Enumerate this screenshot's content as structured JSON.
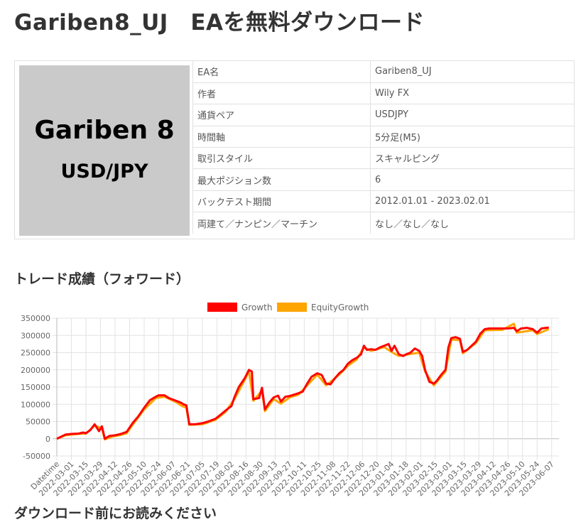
{
  "page": {
    "title": "Gariben8_UJ　EAを無料ダウンロード",
    "section_heading": "トレード成績（フォワード）",
    "next_heading": "ダウンロード前にお読みください"
  },
  "ea_image": {
    "line1": "Gariben 8",
    "line2": "USD/JPY"
  },
  "spec_rows": [
    {
      "key": "EA名",
      "value": "Gariben8_UJ"
    },
    {
      "key": "作者",
      "value": "Wily FX"
    },
    {
      "key": "通貨ペア",
      "value": "USDJPY"
    },
    {
      "key": "時間軸",
      "value": "5分足(M5)"
    },
    {
      "key": "取引スタイル",
      "value": "スキャルピング"
    },
    {
      "key": "最大ポジション数",
      "value": "6"
    },
    {
      "key": "バックテスト期間",
      "value": "2012.01.01 - 2023.02.01"
    },
    {
      "key": "両建て／ナンピン／マーチン",
      "value": "なし／なし／なし"
    }
  ],
  "chart_data": {
    "type": "line",
    "x_categories": [
      "Datetime",
      "2022-03-01",
      "2022-03-15",
      "2022-03-29",
      "2022-04-12",
      "2022-04-26",
      "2022-05-10",
      "2022-05-24",
      "2022-06-07",
      "2022-06-21",
      "2022-07-05",
      "2022-07-19",
      "2022-08-02",
      "2022-08-16",
      "2022-08-30",
      "2022-09-13",
      "2022-09-27",
      "2022-10-11",
      "2022-10-25",
      "2022-11-08",
      "2022-11-22",
      "2022-12-06",
      "2022-12-20",
      "2023-01-04",
      "2023-01-18",
      "2023-02-01",
      "2023-02-15",
      "2023-03-01",
      "2023-03-15",
      "2023-03-29",
      "2023-04-12",
      "2023-04-26",
      "2023-05-10",
      "2023-05-24",
      "2023-06-07"
    ],
    "y_ticks": [
      350000,
      300000,
      250000,
      200000,
      150000,
      100000,
      50000,
      0,
      -50000
    ],
    "ylim": [
      -50000,
      350000
    ],
    "grid": true,
    "legend_position": "top-center",
    "series": [
      {
        "name": "Growth",
        "color": "#ff0000",
        "points": [
          [
            0,
            0
          ],
          [
            0.6,
            12000
          ],
          [
            1,
            14000
          ],
          [
            1.5,
            15000
          ],
          [
            1.8,
            18000
          ],
          [
            2,
            16000
          ],
          [
            2.3,
            25000
          ],
          [
            2.6,
            42000
          ],
          [
            2.9,
            22000
          ],
          [
            3.1,
            36000
          ],
          [
            3.3,
            0
          ],
          [
            3.6,
            8000
          ],
          [
            4,
            10000
          ],
          [
            4.4,
            14000
          ],
          [
            4.8,
            20000
          ],
          [
            5.2,
            45000
          ],
          [
            5.6,
            65000
          ],
          [
            6,
            90000
          ],
          [
            6.4,
            112000
          ],
          [
            6.8,
            122000
          ],
          [
            7,
            126000
          ],
          [
            7.4,
            126000
          ],
          [
            7.7,
            118000
          ],
          [
            8.2,
            110000
          ],
          [
            8.5,
            105000
          ],
          [
            8.7,
            100000
          ],
          [
            8.9,
            97000
          ],
          [
            9.1,
            42000
          ],
          [
            9.5,
            42000
          ],
          [
            10,
            45000
          ],
          [
            10.4,
            50000
          ],
          [
            10.9,
            58000
          ],
          [
            11.2,
            68000
          ],
          [
            11.6,
            82000
          ],
          [
            12,
            95000
          ],
          [
            12.2,
            120000
          ],
          [
            12.5,
            150000
          ],
          [
            12.9,
            175000
          ],
          [
            13.2,
            200000
          ],
          [
            13.4,
            195000
          ],
          [
            13.5,
            115000
          ],
          [
            13.9,
            118000
          ],
          [
            14.1,
            148000
          ],
          [
            14.3,
            85000
          ],
          [
            14.6,
            105000
          ],
          [
            14.9,
            120000
          ],
          [
            15.2,
            125000
          ],
          [
            15.4,
            108000
          ],
          [
            15.7,
            122000
          ],
          [
            16,
            124000
          ],
          [
            16.3,
            128000
          ],
          [
            16.6,
            132000
          ],
          [
            16.9,
            137000
          ],
          [
            17.2,
            160000
          ],
          [
            17.5,
            180000
          ],
          [
            17.9,
            190000
          ],
          [
            18.2,
            185000
          ],
          [
            18.5,
            160000
          ],
          [
            18.8,
            158000
          ],
          [
            19.1,
            175000
          ],
          [
            19.4,
            190000
          ],
          [
            19.7,
            200000
          ],
          [
            20,
            218000
          ],
          [
            20.3,
            228000
          ],
          [
            20.6,
            235000
          ],
          [
            20.9,
            245000
          ],
          [
            21.1,
            270000
          ],
          [
            21.3,
            258000
          ],
          [
            21.6,
            260000
          ],
          [
            21.9,
            258000
          ],
          [
            22.2,
            265000
          ],
          [
            22.5,
            270000
          ],
          [
            22.8,
            275000
          ],
          [
            23,
            255000
          ],
          [
            23.2,
            270000
          ],
          [
            23.5,
            245000
          ],
          [
            23.8,
            240000
          ],
          [
            24,
            245000
          ],
          [
            24.3,
            250000
          ],
          [
            24.6,
            262000
          ],
          [
            24.9,
            255000
          ],
          [
            25.1,
            240000
          ],
          [
            25.3,
            200000
          ],
          [
            25.6,
            165000
          ],
          [
            25.9,
            160000
          ],
          [
            26.1,
            168000
          ],
          [
            26.4,
            185000
          ],
          [
            26.7,
            200000
          ],
          [
            26.9,
            265000
          ],
          [
            27.1,
            292000
          ],
          [
            27.4,
            295000
          ],
          [
            27.7,
            290000
          ],
          [
            27.9,
            252000
          ],
          [
            28.2,
            258000
          ],
          [
            28.5,
            270000
          ],
          [
            28.8,
            282000
          ],
          [
            29.1,
            305000
          ],
          [
            29.4,
            318000
          ],
          [
            29.7,
            320000
          ],
          [
            30.2,
            320000
          ],
          [
            30.6,
            320000
          ],
          [
            31,
            320000
          ],
          [
            31.4,
            322000
          ],
          [
            31.6,
            312000
          ],
          [
            31.9,
            320000
          ],
          [
            32.3,
            322000
          ],
          [
            32.7,
            318000
          ],
          [
            33,
            308000
          ],
          [
            33.3,
            320000
          ],
          [
            33.8,
            323000
          ]
        ]
      },
      {
        "name": "EquityGrowth",
        "color": "#ffa500",
        "points": [
          [
            0,
            0
          ],
          [
            0.6,
            10000
          ],
          [
            1,
            12000
          ],
          [
            1.5,
            14000
          ],
          [
            2,
            15000
          ],
          [
            2.6,
            38000
          ],
          [
            3.1,
            30000
          ],
          [
            3.3,
            -2000
          ],
          [
            3.8,
            6000
          ],
          [
            4.4,
            11000
          ],
          [
            4.8,
            16000
          ],
          [
            5.2,
            40000
          ],
          [
            6,
            85000
          ],
          [
            6.8,
            118000
          ],
          [
            7.4,
            122000
          ],
          [
            8.2,
            106000
          ],
          [
            8.6,
            95000
          ],
          [
            8.9,
            90000
          ],
          [
            9.1,
            40000
          ],
          [
            10,
            42000
          ],
          [
            10.9,
            55000
          ],
          [
            11.6,
            78000
          ],
          [
            12.2,
            115000
          ],
          [
            12.9,
            170000
          ],
          [
            13.2,
            196000
          ],
          [
            13.5,
            110000
          ],
          [
            14.1,
            140000
          ],
          [
            14.3,
            80000
          ],
          [
            14.9,
            115000
          ],
          [
            15.4,
            102000
          ],
          [
            16,
            120000
          ],
          [
            16.6,
            128000
          ],
          [
            17.2,
            155000
          ],
          [
            17.9,
            186000
          ],
          [
            18.5,
            155000
          ],
          [
            19.4,
            186000
          ],
          [
            20,
            212000
          ],
          [
            20.6,
            230000
          ],
          [
            21.1,
            265000
          ],
          [
            21.6,
            255000
          ],
          [
            22.5,
            266000
          ],
          [
            23,
            252000
          ],
          [
            23.5,
            240000
          ],
          [
            24.3,
            246000
          ],
          [
            24.9,
            250000
          ],
          [
            25.3,
            195000
          ],
          [
            25.9,
            155000
          ],
          [
            26.7,
            195000
          ],
          [
            27.1,
            288000
          ],
          [
            27.7,
            286000
          ],
          [
            27.9,
            248000
          ],
          [
            28.8,
            278000
          ],
          [
            29.4,
            315000
          ],
          [
            30.6,
            316000
          ],
          [
            31.4,
            334000
          ],
          [
            31.6,
            308000
          ],
          [
            32.7,
            315000
          ],
          [
            33,
            304000
          ],
          [
            33.8,
            318000
          ]
        ]
      }
    ]
  }
}
